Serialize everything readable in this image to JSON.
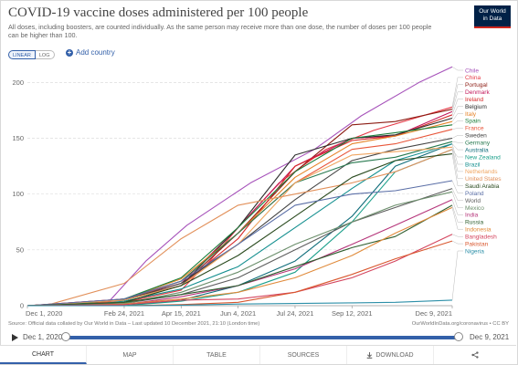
{
  "title": "COVID-19 vaccine doses administered per 100 people",
  "subtitle": "All doses, including boosters, are counted individually. As the same person may receive more than one dose, the number of doses per 100 people can be higher than 100.",
  "logo": {
    "line1": "Our World",
    "line2": "in Data"
  },
  "scale": {
    "linear": "LINEAR",
    "log": "LOG",
    "selected": "linear"
  },
  "add_country": "Add country",
  "source_text": "Source: Official data collated by Our World in Data – Last updated 10 December 2021, 21:10 (London time)",
  "source_right": "OurWorldInData.org/coronavirus • CC BY",
  "timeline": {
    "start": "Dec 1, 2020",
    "end": "Dec 9, 2021"
  },
  "tabs": [
    {
      "label": "CHART",
      "active": true
    },
    {
      "label": "MAP"
    },
    {
      "label": "TABLE"
    },
    {
      "label": "SOURCES"
    },
    {
      "label": "DOWNLOAD",
      "icon": "download-icon"
    },
    {
      "label": "",
      "icon": "share-icon"
    }
  ],
  "chart_data": {
    "type": "line",
    "x_start": "Dec 1, 2020",
    "x_end": "Dec 9, 2021",
    "x_ticks": [
      "Dec 1, 2020",
      "Feb 24, 2021",
      "Apr 15, 2021",
      "Jun 4, 2021",
      "Jul 24, 2021",
      "Sep 12, 2021",
      "Dec 9, 2021"
    ],
    "y_ticks": [
      0,
      50,
      100,
      150,
      200
    ],
    "ylim": [
      0,
      215
    ],
    "grid": true,
    "legend": "right",
    "series": [
      {
        "name": "Chile",
        "color": "#a652ba",
        "points": [
          [
            "Dec 1, 2020",
            0
          ],
          [
            "Feb 10, 2021",
            3
          ],
          [
            "Mar 15, 2021",
            40
          ],
          [
            "Apr 20, 2021",
            72
          ],
          [
            "Jun 15, 2021",
            110
          ],
          [
            "Aug 10, 2021",
            140
          ],
          [
            "Sep 20, 2021",
            170
          ],
          [
            "Nov 10, 2021",
            200
          ],
          [
            "Dec 9, 2021",
            214
          ]
        ]
      },
      {
        "name": "China",
        "color": "#e63946",
        "points": [
          [
            "Dec 1, 2020",
            0
          ],
          [
            "Feb 24, 2021",
            3
          ],
          [
            "Apr 15, 2021",
            14
          ],
          [
            "May 10, 2021",
            40
          ],
          [
            "Jun 4, 2021",
            70
          ],
          [
            "Jul 10, 2021",
            110
          ],
          [
            "Aug 20, 2021",
            140
          ],
          [
            "Oct 1, 2021",
            157
          ],
          [
            "Dec 9, 2021",
            178
          ]
        ]
      },
      {
        "name": "Portugal",
        "color": "#8c1c13",
        "points": [
          [
            "Dec 1, 2020",
            0
          ],
          [
            "Feb 24, 2021",
            5
          ],
          [
            "Apr 15, 2021",
            18
          ],
          [
            "Jun 4, 2021",
            65
          ],
          [
            "Jul 24, 2021",
            120
          ],
          [
            "Sep 12, 2021",
            162
          ],
          [
            "Oct 20, 2021",
            165
          ],
          [
            "Dec 9, 2021",
            176
          ]
        ]
      },
      {
        "name": "Denmark",
        "color": "#c2185b",
        "points": [
          [
            "Dec 1, 2020",
            0
          ],
          [
            "Feb 24, 2021",
            6
          ],
          [
            "Apr 15, 2021",
            20
          ],
          [
            "Jun 4, 2021",
            70
          ],
          [
            "Jul 24, 2021",
            125
          ],
          [
            "Sep 12, 2021",
            150
          ],
          [
            "Oct 20, 2021",
            152
          ],
          [
            "Dec 9, 2021",
            174
          ]
        ]
      },
      {
        "name": "Ireland",
        "color": "#d62728",
        "points": [
          [
            "Dec 1, 2020",
            0
          ],
          [
            "Feb 24, 2021",
            6
          ],
          [
            "Apr 15, 2021",
            18
          ],
          [
            "Jun 4, 2021",
            60
          ],
          [
            "Jul 24, 2021",
            125
          ],
          [
            "Sep 12, 2021",
            148
          ],
          [
            "Oct 20, 2021",
            152
          ],
          [
            "Dec 9, 2021",
            171
          ]
        ]
      },
      {
        "name": "Belgium",
        "color": "#2e2e2e",
        "points": [
          [
            "Dec 1, 2020",
            0
          ],
          [
            "Feb 24, 2021",
            5
          ],
          [
            "Apr 15, 2021",
            18
          ],
          [
            "Jun 4, 2021",
            70
          ],
          [
            "Jul 24, 2021",
            135
          ],
          [
            "Sep 12, 2021",
            150
          ],
          [
            "Oct 20, 2021",
            153
          ],
          [
            "Dec 9, 2021",
            168
          ]
        ]
      },
      {
        "name": "Italy",
        "color": "#e6842a",
        "points": [
          [
            "Dec 1, 2020",
            0
          ],
          [
            "Jan 10, 2021",
            1
          ],
          [
            "Feb 24, 2021",
            6
          ],
          [
            "Apr 15, 2021",
            24
          ],
          [
            "Jun 4, 2021",
            65
          ],
          [
            "Jul 24, 2021",
            115
          ],
          [
            "Sep 12, 2021",
            145
          ],
          [
            "Oct 20, 2021",
            152
          ],
          [
            "Dec 9, 2021",
            165
          ]
        ]
      },
      {
        "name": "Spain",
        "color": "#1a7d3a",
        "points": [
          [
            "Dec 1, 2020",
            0
          ],
          [
            "Jan 10, 2021",
            1
          ],
          [
            "Feb 24, 2021",
            6
          ],
          [
            "Apr 15, 2021",
            25
          ],
          [
            "Jun 4, 2021",
            70
          ],
          [
            "Jul 24, 2021",
            120
          ],
          [
            "Sep 12, 2021",
            150
          ],
          [
            "Oct 20, 2021",
            155
          ],
          [
            "Dec 9, 2021",
            162
          ]
        ]
      },
      {
        "name": "France",
        "color": "#e8563a",
        "points": [
          [
            "Dec 1, 2020",
            0
          ],
          [
            "Jan 10, 2021",
            0.5
          ],
          [
            "Feb 24, 2021",
            5
          ],
          [
            "Apr 15, 2021",
            22
          ],
          [
            "Jun 4, 2021",
            65
          ],
          [
            "Jul 24, 2021",
            110
          ],
          [
            "Sep 12, 2021",
            140
          ],
          [
            "Oct 20, 2021",
            145
          ],
          [
            "Dec 9, 2021",
            158
          ]
        ]
      },
      {
        "name": "Sweden",
        "color": "#444444",
        "points": [
          [
            "Dec 1, 2020",
            0
          ],
          [
            "Feb 24, 2021",
            5
          ],
          [
            "Apr 15, 2021",
            20
          ],
          [
            "Jun 4, 2021",
            55
          ],
          [
            "Jul 24, 2021",
            95
          ],
          [
            "Sep 12, 2021",
            130
          ],
          [
            "Oct 20, 2021",
            140
          ],
          [
            "Dec 9, 2021",
            150
          ]
        ]
      },
      {
        "name": "Germany",
        "color": "#287a50",
        "points": [
          [
            "Dec 1, 2020",
            0
          ],
          [
            "Jan 5, 2021",
            1
          ],
          [
            "Feb 24, 2021",
            6
          ],
          [
            "Apr 15, 2021",
            22
          ],
          [
            "Jun 4, 2021",
            65
          ],
          [
            "Jul 24, 2021",
            110
          ],
          [
            "Sep 12, 2021",
            128
          ],
          [
            "Oct 20, 2021",
            133
          ],
          [
            "Dec 9, 2021",
            147
          ]
        ]
      },
      {
        "name": "Australia",
        "color": "#0e6c7a",
        "points": [
          [
            "Dec 1, 2020",
            0
          ],
          [
            "Feb 24, 2021",
            0
          ],
          [
            "Apr 15, 2021",
            5
          ],
          [
            "Jun 4, 2021",
            18
          ],
          [
            "Jul 24, 2021",
            40
          ],
          [
            "Sep 12, 2021",
            80
          ],
          [
            "Oct 20, 2021",
            125
          ],
          [
            "Dec 9, 2021",
            145
          ]
        ]
      },
      {
        "name": "New Zealand",
        "color": "#1a9f8a",
        "points": [
          [
            "Dec 1, 2020",
            0
          ],
          [
            "Feb 24, 2021",
            0
          ],
          [
            "Apr 15, 2021",
            4
          ],
          [
            "Jun 4, 2021",
            12
          ],
          [
            "Jul 24, 2021",
            30
          ],
          [
            "Sep 12, 2021",
            75
          ],
          [
            "Oct 20, 2021",
            120
          ],
          [
            "Dec 9, 2021",
            140
          ]
        ]
      },
      {
        "name": "Brazil",
        "color": "#148f8f",
        "points": [
          [
            "Dec 1, 2020",
            0
          ],
          [
            "Jan 20, 2021",
            0.5
          ],
          [
            "Feb 24, 2021",
            4
          ],
          [
            "Apr 15, 2021",
            15
          ],
          [
            "Jun 4, 2021",
            35
          ],
          [
            "Jul 24, 2021",
            70
          ],
          [
            "Sep 12, 2021",
            105
          ],
          [
            "Oct 20, 2021",
            130
          ],
          [
            "Dec 9, 2021",
            145
          ]
        ]
      },
      {
        "name": "Netherlands",
        "color": "#f0a560",
        "points": [
          [
            "Dec 1, 2020",
            0
          ],
          [
            "Feb 24, 2021",
            5
          ],
          [
            "Apr 15, 2021",
            18
          ],
          [
            "Jun 4, 2021",
            55
          ],
          [
            "Jul 24, 2021",
            110
          ],
          [
            "Sep 12, 2021",
            135
          ],
          [
            "Oct 20, 2021",
            138
          ],
          [
            "Dec 9, 2021",
            142
          ]
        ]
      },
      {
        "name": "United States",
        "color": "#e2905a",
        "points": [
          [
            "Dec 1, 2020",
            0
          ],
          [
            "Dec 20, 2020",
            1
          ],
          [
            "Feb 24, 2021",
            20
          ],
          [
            "Apr 15, 2021",
            60
          ],
          [
            "Jun 4, 2021",
            90
          ],
          [
            "Jul 24, 2021",
            100
          ],
          [
            "Sep 12, 2021",
            110
          ],
          [
            "Oct 20, 2021",
            120
          ],
          [
            "Dec 9, 2021",
            140
          ]
        ]
      },
      {
        "name": "Saudi Arabia",
        "color": "#2a4a1e",
        "points": [
          [
            "Dec 1, 2020",
            0
          ],
          [
            "Jan 10, 2021",
            1
          ],
          [
            "Feb 24, 2021",
            3
          ],
          [
            "Apr 15, 2021",
            18
          ],
          [
            "Jun 4, 2021",
            45
          ],
          [
            "Jul 24, 2021",
            80
          ],
          [
            "Sep 12, 2021",
            115
          ],
          [
            "Oct 20, 2021",
            130
          ],
          [
            "Dec 9, 2021",
            136
          ]
        ]
      },
      {
        "name": "Poland",
        "color": "#5a6ea6",
        "points": [
          [
            "Dec 1, 2020",
            0
          ],
          [
            "Feb 24, 2021",
            6
          ],
          [
            "Apr 15, 2021",
            22
          ],
          [
            "Jun 4, 2021",
            55
          ],
          [
            "Jul 24, 2021",
            90
          ],
          [
            "Sep 12, 2021",
            100
          ],
          [
            "Oct 20, 2021",
            103
          ],
          [
            "Dec 9, 2021",
            112
          ]
        ]
      },
      {
        "name": "World",
        "color": "#5e5e5e",
        "points": [
          [
            "Dec 1, 2020",
            0
          ],
          [
            "Feb 24, 2021",
            2
          ],
          [
            "Apr 15, 2021",
            10
          ],
          [
            "Jun 4, 2021",
            25
          ],
          [
            "Jul 24, 2021",
            50
          ],
          [
            "Sep 12, 2021",
            75
          ],
          [
            "Oct 20, 2021",
            88
          ],
          [
            "Dec 9, 2021",
            105
          ]
        ]
      },
      {
        "name": "Mexico",
        "color": "#6b8e6b",
        "points": [
          [
            "Dec 1, 2020",
            0
          ],
          [
            "Jan 10, 2021",
            0.3
          ],
          [
            "Feb 24, 2021",
            2
          ],
          [
            "Apr 15, 2021",
            12
          ],
          [
            "Jun 4, 2021",
            30
          ],
          [
            "Jul 24, 2021",
            55
          ],
          [
            "Sep 12, 2021",
            75
          ],
          [
            "Oct 20, 2021",
            90
          ],
          [
            "Dec 9, 2021",
            102
          ]
        ]
      },
      {
        "name": "India",
        "color": "#b5357a",
        "points": [
          [
            "Dec 1, 2020",
            0
          ],
          [
            "Jan 20, 2021",
            0.2
          ],
          [
            "Feb 24, 2021",
            1
          ],
          [
            "Apr 15, 2021",
            8
          ],
          [
            "Jun 4, 2021",
            18
          ],
          [
            "Jul 24, 2021",
            33
          ],
          [
            "Sep 12, 2021",
            55
          ],
          [
            "Oct 20, 2021",
            72
          ],
          [
            "Dec 9, 2021",
            95
          ]
        ]
      },
      {
        "name": "Russia",
        "color": "#2f5e2f",
        "points": [
          [
            "Dec 1, 2020",
            0
          ],
          [
            "Feb 24, 2021",
            3
          ],
          [
            "Apr 15, 2021",
            10
          ],
          [
            "Jun 4, 2021",
            18
          ],
          [
            "Jul 24, 2021",
            35
          ],
          [
            "Sep 12, 2021",
            52
          ],
          [
            "Oct 20, 2021",
            62
          ],
          [
            "Dec 9, 2021",
            90
          ]
        ]
      },
      {
        "name": "Indonesia",
        "color": "#e08a3a",
        "points": [
          [
            "Dec 1, 2020",
            0
          ],
          [
            "Jan 20, 2021",
            0.3
          ],
          [
            "Feb 24, 2021",
            1.5
          ],
          [
            "Apr 15, 2021",
            6
          ],
          [
            "Jun 4, 2021",
            12
          ],
          [
            "Jul 24, 2021",
            25
          ],
          [
            "Sep 12, 2021",
            45
          ],
          [
            "Oct 20, 2021",
            65
          ],
          [
            "Dec 9, 2021",
            88
          ]
        ]
      },
      {
        "name": "Bangladesh",
        "color": "#d4455e",
        "points": [
          [
            "Dec 1, 2020",
            0
          ],
          [
            "Feb 24, 2021",
            1
          ],
          [
            "Apr 15, 2021",
            5
          ],
          [
            "Jun 4, 2021",
            6
          ],
          [
            "Jul 24, 2021",
            12
          ],
          [
            "Sep 12, 2021",
            25
          ],
          [
            "Oct 20, 2021",
            40
          ],
          [
            "Dec 9, 2021",
            64
          ]
        ]
      },
      {
        "name": "Pakistan",
        "color": "#d9572e",
        "points": [
          [
            "Dec 1, 2020",
            0
          ],
          [
            "Feb 24, 2021",
            0
          ],
          [
            "Apr 15, 2021",
            1
          ],
          [
            "Jun 4, 2021",
            3
          ],
          [
            "Jul 24, 2021",
            12
          ],
          [
            "Sep 12, 2021",
            28
          ],
          [
            "Oct 20, 2021",
            42
          ],
          [
            "Dec 9, 2021",
            58
          ]
        ]
      },
      {
        "name": "Nigeria",
        "color": "#2c8fa8",
        "points": [
          [
            "Dec 1, 2020",
            0
          ],
          [
            "Mar 10, 2021",
            0
          ],
          [
            "Apr 15, 2021",
            0.5
          ],
          [
            "Jun 4, 2021",
            1.5
          ],
          [
            "Jul 24, 2021",
            2
          ],
          [
            "Sep 12, 2021",
            2.5
          ],
          [
            "Oct 20, 2021",
            3
          ],
          [
            "Dec 9, 2021",
            5
          ]
        ]
      }
    ]
  }
}
